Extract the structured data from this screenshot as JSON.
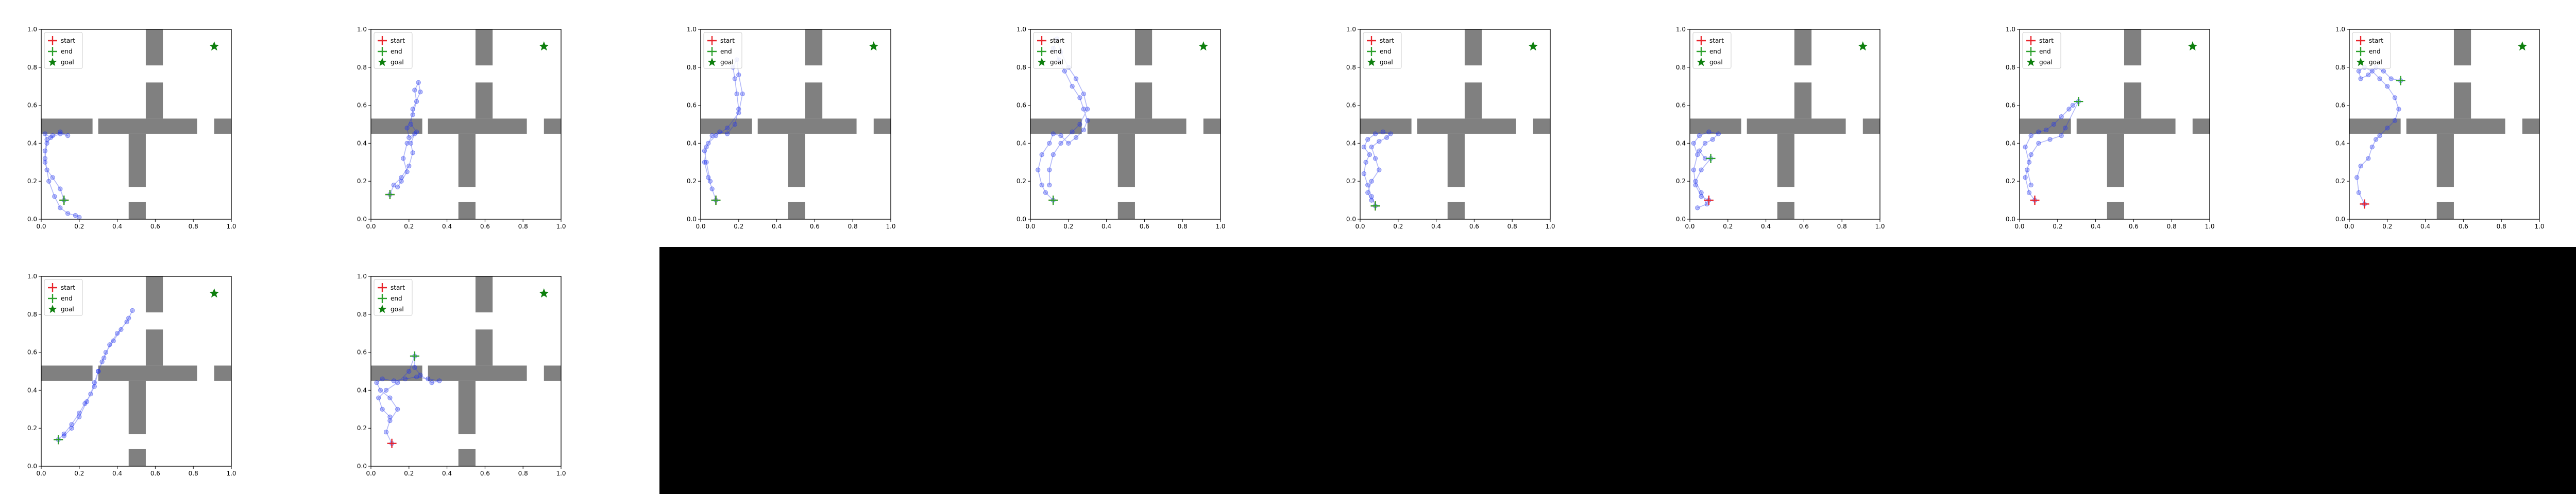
{
  "figure": {
    "layout": {
      "rows": 2,
      "cols": 8,
      "panels_used": 10
    },
    "legend_labels": [
      "start",
      "end",
      "goal"
    ],
    "colors": {
      "start": "#e8232a",
      "end": "#2ca02c",
      "goal": "#0d7f0d",
      "path": "#2233ee",
      "wall": "#808080",
      "empty_area": "#000000"
    },
    "x_ticks": [
      "0.0",
      "0.2",
      "0.4",
      "0.6",
      "0.8",
      "1.0"
    ],
    "y_ticks": [
      "0.0",
      "0.2",
      "0.4",
      "0.6",
      "0.8",
      "1.0"
    ]
  },
  "chart_data": [
    {
      "type": "scatter",
      "xlim": [
        0,
        1
      ],
      "ylim": [
        0,
        1
      ],
      "grid": false,
      "legend": "upper left",
      "goal": [
        0.91,
        0.91
      ],
      "start": [
        0.12,
        0.1
      ],
      "end": [
        0.12,
        0.1
      ],
      "path": [
        [
          0.12,
          0.1
        ],
        [
          0.1,
          0.16
        ],
        [
          0.06,
          0.22
        ],
        [
          0.03,
          0.26
        ],
        [
          0.02,
          0.3
        ],
        [
          0.02,
          0.36
        ],
        [
          0.03,
          0.42
        ],
        [
          0.02,
          0.45
        ],
        [
          0.05,
          0.43
        ],
        [
          0.1,
          0.45
        ],
        [
          0.14,
          0.44
        ],
        [
          0.1,
          0.46
        ],
        [
          0.06,
          0.44
        ],
        [
          0.03,
          0.4
        ],
        [
          0.02,
          0.32
        ],
        [
          0.04,
          0.2
        ],
        [
          0.07,
          0.12
        ],
        [
          0.1,
          0.06
        ],
        [
          0.14,
          0.03
        ],
        [
          0.18,
          0.02
        ],
        [
          0.2,
          0.01
        ]
      ]
    },
    {
      "type": "scatter",
      "xlim": [
        0,
        1
      ],
      "ylim": [
        0,
        1
      ],
      "grid": false,
      "legend": "upper left",
      "goal": [
        0.91,
        0.91
      ],
      "start": [
        0.1,
        0.13
      ],
      "end": [
        0.1,
        0.13
      ],
      "path": [
        [
          0.1,
          0.13
        ],
        [
          0.12,
          0.18
        ],
        [
          0.16,
          0.22
        ],
        [
          0.2,
          0.28
        ],
        [
          0.22,
          0.35
        ],
        [
          0.21,
          0.4
        ],
        [
          0.23,
          0.45
        ],
        [
          0.2,
          0.43
        ],
        [
          0.19,
          0.48
        ],
        [
          0.22,
          0.55
        ],
        [
          0.24,
          0.62
        ],
        [
          0.23,
          0.68
        ],
        [
          0.25,
          0.72
        ],
        [
          0.26,
          0.67
        ],
        [
          0.22,
          0.58
        ],
        [
          0.21,
          0.5
        ],
        [
          0.24,
          0.46
        ],
        [
          0.19,
          0.4
        ],
        [
          0.17,
          0.32
        ],
        [
          0.19,
          0.25
        ],
        [
          0.16,
          0.2
        ],
        [
          0.14,
          0.17
        ]
      ]
    },
    {
      "type": "scatter",
      "xlim": [
        0,
        1
      ],
      "ylim": [
        0,
        1
      ],
      "grid": false,
      "legend": "upper left",
      "goal": [
        0.91,
        0.91
      ],
      "start": [
        0.08,
        0.1
      ],
      "end": [
        0.08,
        0.1
      ],
      "path": [
        [
          0.08,
          0.1
        ],
        [
          0.06,
          0.16
        ],
        [
          0.04,
          0.22
        ],
        [
          0.02,
          0.3
        ],
        [
          0.03,
          0.38
        ],
        [
          0.06,
          0.44
        ],
        [
          0.1,
          0.46
        ],
        [
          0.14,
          0.45
        ],
        [
          0.18,
          0.5
        ],
        [
          0.2,
          0.58
        ],
        [
          0.19,
          0.66
        ],
        [
          0.18,
          0.74
        ],
        [
          0.17,
          0.8
        ],
        [
          0.19,
          0.84
        ],
        [
          0.2,
          0.76
        ],
        [
          0.22,
          0.66
        ],
        [
          0.2,
          0.56
        ],
        [
          0.14,
          0.48
        ],
        [
          0.08,
          0.44
        ],
        [
          0.04,
          0.4
        ],
        [
          0.02,
          0.36
        ],
        [
          0.03,
          0.3
        ],
        [
          0.05,
          0.2
        ]
      ]
    },
    {
      "type": "scatter",
      "xlim": [
        0,
        1
      ],
      "ylim": [
        0,
        1
      ],
      "grid": false,
      "legend": "upper left",
      "goal": [
        0.91,
        0.91
      ],
      "start": [
        0.12,
        0.1
      ],
      "end": [
        0.12,
        0.1
      ],
      "path": [
        [
          0.12,
          0.1
        ],
        [
          0.08,
          0.14
        ],
        [
          0.06,
          0.18
        ],
        [
          0.04,
          0.26
        ],
        [
          0.06,
          0.34
        ],
        [
          0.1,
          0.4
        ],
        [
          0.12,
          0.45
        ],
        [
          0.16,
          0.44
        ],
        [
          0.2,
          0.4
        ],
        [
          0.24,
          0.43
        ],
        [
          0.28,
          0.47
        ],
        [
          0.3,
          0.52
        ],
        [
          0.28,
          0.58
        ],
        [
          0.26,
          0.64
        ],
        [
          0.22,
          0.7
        ],
        [
          0.18,
          0.78
        ],
        [
          0.15,
          0.84
        ],
        [
          0.12,
          0.9
        ],
        [
          0.14,
          0.95
        ],
        [
          0.16,
          0.88
        ],
        [
          0.2,
          0.8
        ],
        [
          0.24,
          0.74
        ],
        [
          0.28,
          0.66
        ],
        [
          0.3,
          0.58
        ],
        [
          0.26,
          0.5
        ],
        [
          0.22,
          0.46
        ],
        [
          0.16,
          0.4
        ],
        [
          0.12,
          0.34
        ],
        [
          0.1,
          0.26
        ],
        [
          0.1,
          0.18
        ]
      ]
    },
    {
      "type": "scatter",
      "xlim": [
        0,
        1
      ],
      "ylim": [
        0,
        1
      ],
      "grid": false,
      "legend": "upper left",
      "goal": [
        0.91,
        0.91
      ],
      "start": [
        0.08,
        0.07
      ],
      "end": [
        0.08,
        0.07
      ],
      "path": [
        [
          0.08,
          0.07
        ],
        [
          0.06,
          0.12
        ],
        [
          0.04,
          0.18
        ],
        [
          0.02,
          0.24
        ],
        [
          0.03,
          0.3
        ],
        [
          0.05,
          0.34
        ],
        [
          0.02,
          0.38
        ],
        [
          0.04,
          0.42
        ],
        [
          0.08,
          0.45
        ],
        [
          0.12,
          0.46
        ],
        [
          0.16,
          0.45
        ],
        [
          0.14,
          0.43
        ],
        [
          0.1,
          0.41
        ],
        [
          0.06,
          0.38
        ],
        [
          0.08,
          0.32
        ],
        [
          0.1,
          0.26
        ],
        [
          0.06,
          0.2
        ],
        [
          0.04,
          0.14
        ],
        [
          0.06,
          0.1
        ]
      ]
    },
    {
      "type": "scatter",
      "xlim": [
        0,
        1
      ],
      "ylim": [
        0,
        1
      ],
      "grid": false,
      "legend": "upper left",
      "goal": [
        0.91,
        0.91
      ],
      "start": [
        0.1,
        0.1
      ],
      "end": [
        0.11,
        0.32
      ],
      "path": [
        [
          0.1,
          0.1
        ],
        [
          0.06,
          0.12
        ],
        [
          0.03,
          0.18
        ],
        [
          0.02,
          0.26
        ],
        [
          0.04,
          0.34
        ],
        [
          0.02,
          0.4
        ],
        [
          0.05,
          0.44
        ],
        [
          0.1,
          0.46
        ],
        [
          0.15,
          0.45
        ],
        [
          0.12,
          0.42
        ],
        [
          0.08,
          0.4
        ],
        [
          0.05,
          0.36
        ],
        [
          0.08,
          0.32
        ],
        [
          0.11,
          0.32
        ],
        [
          0.06,
          0.26
        ],
        [
          0.03,
          0.2
        ],
        [
          0.06,
          0.14
        ],
        [
          0.09,
          0.08
        ],
        [
          0.04,
          0.06
        ]
      ]
    },
    {
      "type": "scatter",
      "xlim": [
        0,
        1
      ],
      "ylim": [
        0,
        1
      ],
      "grid": false,
      "legend": "upper left",
      "goal": [
        0.91,
        0.91
      ],
      "start": [
        0.08,
        0.1
      ],
      "end": [
        0.31,
        0.62
      ],
      "path": [
        [
          0.08,
          0.1
        ],
        [
          0.05,
          0.14
        ],
        [
          0.03,
          0.22
        ],
        [
          0.05,
          0.3
        ],
        [
          0.03,
          0.38
        ],
        [
          0.06,
          0.44
        ],
        [
          0.1,
          0.46
        ],
        [
          0.14,
          0.47
        ],
        [
          0.18,
          0.5
        ],
        [
          0.22,
          0.54
        ],
        [
          0.26,
          0.58
        ],
        [
          0.28,
          0.6
        ],
        [
          0.31,
          0.62
        ],
        [
          0.24,
          0.48
        ],
        [
          0.22,
          0.44
        ],
        [
          0.16,
          0.42
        ],
        [
          0.1,
          0.4
        ],
        [
          0.06,
          0.34
        ],
        [
          0.04,
          0.26
        ],
        [
          0.06,
          0.18
        ]
      ]
    },
    {
      "type": "scatter",
      "xlim": [
        0,
        1
      ],
      "ylim": [
        0,
        1
      ],
      "grid": false,
      "legend": "upper left",
      "goal": [
        0.91,
        0.91
      ],
      "start": [
        0.08,
        0.08
      ],
      "end": [
        0.27,
        0.73
      ],
      "path": [
        [
          0.08,
          0.08
        ],
        [
          0.05,
          0.14
        ],
        [
          0.04,
          0.22
        ],
        [
          0.06,
          0.28
        ],
        [
          0.1,
          0.32
        ],
        [
          0.12,
          0.38
        ],
        [
          0.14,
          0.42
        ],
        [
          0.16,
          0.44
        ],
        [
          0.2,
          0.48
        ],
        [
          0.24,
          0.52
        ],
        [
          0.26,
          0.58
        ],
        [
          0.24,
          0.64
        ],
        [
          0.2,
          0.7
        ],
        [
          0.16,
          0.74
        ],
        [
          0.12,
          0.78
        ],
        [
          0.08,
          0.8
        ],
        [
          0.05,
          0.78
        ],
        [
          0.06,
          0.74
        ],
        [
          0.1,
          0.76
        ],
        [
          0.14,
          0.8
        ],
        [
          0.18,
          0.78
        ],
        [
          0.22,
          0.74
        ],
        [
          0.27,
          0.73
        ]
      ]
    },
    {
      "type": "scatter",
      "xlim": [
        0,
        1
      ],
      "ylim": [
        0,
        1
      ],
      "grid": false,
      "legend": "upper left",
      "goal": [
        0.91,
        0.91
      ],
      "start": [
        0.09,
        0.14
      ],
      "end": [
        0.09,
        0.14
      ],
      "path": [
        [
          0.09,
          0.14
        ],
        [
          0.12,
          0.17
        ],
        [
          0.16,
          0.22
        ],
        [
          0.2,
          0.28
        ],
        [
          0.23,
          0.33
        ],
        [
          0.26,
          0.38
        ],
        [
          0.28,
          0.44
        ],
        [
          0.3,
          0.5
        ],
        [
          0.32,
          0.55
        ],
        [
          0.34,
          0.6
        ],
        [
          0.38,
          0.66
        ],
        [
          0.42,
          0.72
        ],
        [
          0.46,
          0.78
        ],
        [
          0.48,
          0.82
        ],
        [
          0.45,
          0.76
        ],
        [
          0.4,
          0.7
        ],
        [
          0.36,
          0.64
        ],
        [
          0.33,
          0.57
        ],
        [
          0.3,
          0.5
        ],
        [
          0.28,
          0.42
        ],
        [
          0.24,
          0.34
        ],
        [
          0.2,
          0.26
        ],
        [
          0.16,
          0.2
        ],
        [
          0.12,
          0.16
        ]
      ]
    },
    {
      "type": "scatter",
      "xlim": [
        0,
        1
      ],
      "ylim": [
        0,
        1
      ],
      "grid": false,
      "legend": "upper left",
      "goal": [
        0.91,
        0.91
      ],
      "start": [
        0.11,
        0.12
      ],
      "end": [
        0.23,
        0.58
      ],
      "path": [
        [
          0.11,
          0.12
        ],
        [
          0.08,
          0.18
        ],
        [
          0.1,
          0.24
        ],
        [
          0.14,
          0.3
        ],
        [
          0.1,
          0.36
        ],
        [
          0.05,
          0.4
        ],
        [
          0.03,
          0.44
        ],
        [
          0.06,
          0.46
        ],
        [
          0.12,
          0.45
        ],
        [
          0.18,
          0.46
        ],
        [
          0.24,
          0.47
        ],
        [
          0.3,
          0.46
        ],
        [
          0.36,
          0.45
        ],
        [
          0.32,
          0.44
        ],
        [
          0.26,
          0.48
        ],
        [
          0.23,
          0.52
        ],
        [
          0.23,
          0.58
        ],
        [
          0.2,
          0.5
        ],
        [
          0.14,
          0.44
        ],
        [
          0.08,
          0.4
        ],
        [
          0.04,
          0.36
        ],
        [
          0.06,
          0.3
        ],
        [
          0.1,
          0.26
        ]
      ]
    }
  ]
}
